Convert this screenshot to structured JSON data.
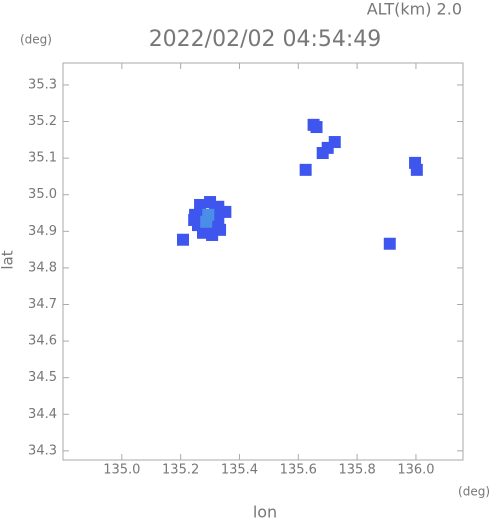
{
  "chart_data": {
    "type": "scatter",
    "title": "2022/02/02 04:54:49",
    "altitude_label": "ALT(km) 2.0",
    "y_unit": "(deg)",
    "x_unit": "(deg)",
    "xlabel": "lon",
    "ylabel": "lat",
    "xlim": [
      134.8,
      136.16
    ],
    "ylim": [
      34.275,
      35.36
    ],
    "xticks": [
      {
        "value": 135,
        "label": "135.0"
      },
      135.2,
      135.4,
      135.6,
      135.8,
      {
        "value": 136,
        "label": "136.0"
      }
    ],
    "yticks": [
      34.3,
      34.4,
      34.5,
      34.6,
      34.7,
      34.8,
      34.9,
      {
        "value": 35,
        "label": "35.0"
      },
      35.1,
      35.2,
      35.3
    ],
    "series": [
      {
        "color": "#3f56ee",
        "x": [
          135.266,
          135.3,
          135.328,
          135.249,
          135.283,
          135.317,
          135.352,
          135.259,
          135.294,
          135.328,
          135.276,
          135.307,
          135.334,
          135.246,
          135.208,
          135.652,
          135.662,
          135.724,
          135.7,
          135.683,
          135.997,
          136.003,
          135.911,
          135.625
        ],
        "y": [
          34.972,
          34.98,
          34.967,
          34.945,
          34.945,
          34.95,
          34.953,
          34.917,
          34.917,
          34.926,
          34.896,
          34.89,
          34.904,
          34.931,
          34.877,
          35.191,
          35.185,
          35.144,
          35.128,
          35.114,
          35.087,
          35.068,
          34.866,
          35.068
        ]
      },
      {
        "color": "#4a8ee8",
        "x": [
          135.294,
          135.287
        ],
        "y": [
          34.945,
          34.926
        ]
      }
    ]
  }
}
